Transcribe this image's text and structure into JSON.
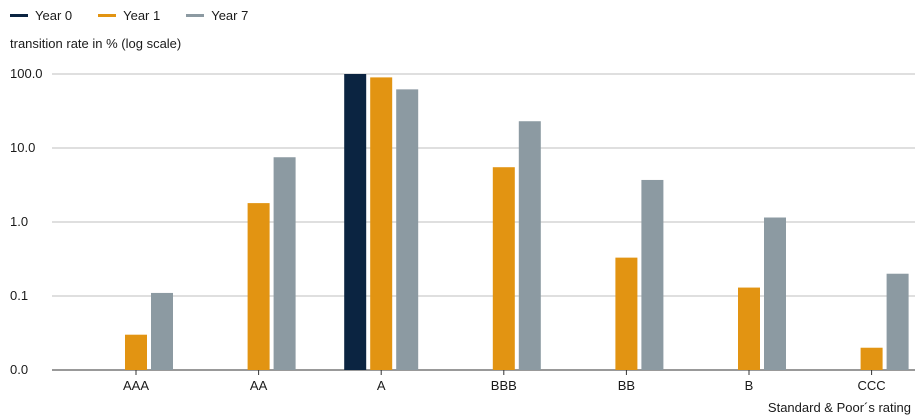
{
  "chart_data": {
    "type": "bar",
    "title": "",
    "ylabel": "transition rate in % (log scale)",
    "xlabel": "Standard & Poor´s rating",
    "yscale": "log",
    "ylim": [
      0.01,
      100
    ],
    "yticks": [
      0.01,
      0.1,
      1,
      10,
      100
    ],
    "ytick_labels": [
      "0.0",
      "0.1",
      "1.0",
      "10.0",
      "100.0"
    ],
    "grid": true,
    "legend_position": "top-left",
    "categories": [
      "AAA",
      "AA",
      "A",
      "BBB",
      "BB",
      "B",
      "CCC"
    ],
    "series": [
      {
        "name": "Year 0",
        "color": "#0b2441",
        "values": [
          null,
          null,
          100,
          null,
          null,
          null,
          null
        ]
      },
      {
        "name": "Year 1",
        "color": "#e29412",
        "values": [
          0.03,
          1.8,
          90,
          5.5,
          0.33,
          0.13,
          0.02
        ]
      },
      {
        "name": "Year 7",
        "color": "#8c9aa2",
        "values": [
          0.11,
          7.5,
          62,
          23,
          3.7,
          1.15,
          0.2
        ]
      }
    ]
  }
}
